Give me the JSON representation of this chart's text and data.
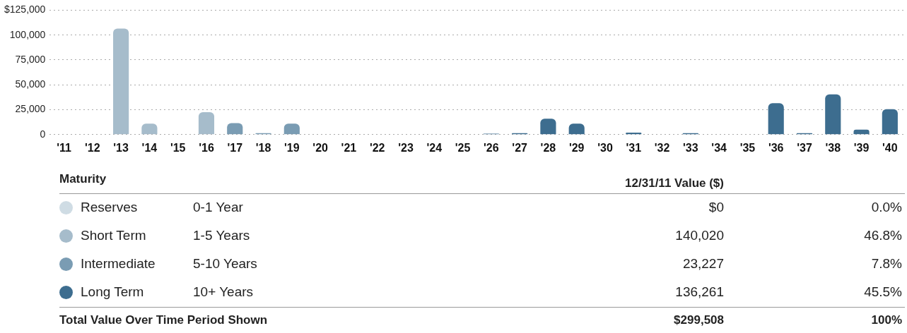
{
  "chart_data": {
    "type": "bar",
    "stacked": true,
    "grid": "y",
    "legend": "bottom",
    "categories": [
      "'11",
      "'12",
      "'13",
      "'14",
      "'15",
      "'16",
      "'17",
      "'18",
      "'19",
      "'20",
      "'21",
      "'22",
      "'23",
      "'24",
      "'25",
      "'26",
      "'27",
      "'28",
      "'29",
      "'30",
      "'31",
      "'32",
      "'33",
      "'34",
      "'35",
      "'36",
      "'37",
      "'38",
      "'39",
      "'40"
    ],
    "ylim": [
      0,
      125000
    ],
    "yticks": [
      0,
      {
        "value": 25000,
        "label": "25,000"
      },
      {
        "value": 50000,
        "label": "50,000"
      },
      {
        "value": 75000,
        "label": "75,000"
      },
      {
        "value": 100000,
        "label": "100,000"
      },
      {
        "value": 125000,
        "label": "$125,000"
      }
    ],
    "series": [
      {
        "name": "Reserves",
        "color": "#cfdce4",
        "values": [
          null,
          null,
          null,
          null,
          null,
          null,
          null,
          null,
          null,
          null,
          null,
          null,
          null,
          null,
          null,
          null,
          null,
          null,
          null,
          null,
          null,
          null,
          null,
          null,
          null,
          null,
          null,
          null,
          null,
          null
        ]
      },
      {
        "name": "Short Term",
        "color": "#a6bccb",
        "values": [
          null,
          null,
          106500,
          11000,
          null,
          22500,
          null,
          null,
          null,
          null,
          null,
          null,
          null,
          null,
          null,
          null,
          null,
          null,
          null,
          null,
          null,
          null,
          null,
          null,
          null,
          null,
          null,
          null,
          null,
          null
        ]
      },
      {
        "name": "Intermediate",
        "color": "#7a9cb3",
        "values": [
          null,
          null,
          null,
          null,
          null,
          null,
          11500,
          1500,
          11000,
          null,
          null,
          null,
          null,
          null,
          null,
          null,
          null,
          null,
          null,
          null,
          null,
          null,
          null,
          null,
          null,
          null,
          null,
          null,
          null,
          null
        ]
      },
      {
        "name": "Long Term",
        "color": "#3d6d8f",
        "values": [
          null,
          null,
          null,
          null,
          null,
          null,
          null,
          null,
          null,
          null,
          null,
          null,
          null,
          null,
          null,
          1000,
          1500,
          16000,
          11000,
          null,
          2000,
          null,
          1400,
          null,
          null,
          31500,
          1400,
          40500,
          5000,
          25500
        ]
      }
    ],
    "annotations": [
      "Maturity",
      "12/31/11 Value ($)",
      "0-1 Year",
      "$0",
      "0.0%",
      "1-5 Years",
      "140,020",
      "46.8%",
      "5-10 Years",
      "23,227",
      "7.8%",
      "10+ Years",
      "136,261",
      "45.5%",
      "Total Value Over Time Period Shown",
      "$299,508",
      "100%"
    ]
  }
}
